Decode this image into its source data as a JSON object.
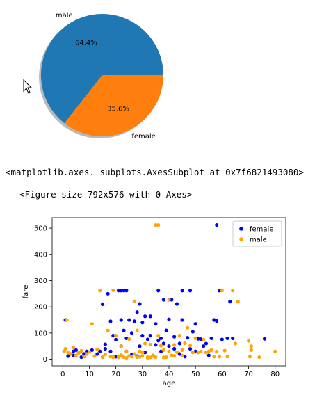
{
  "outputs": {
    "repr": "<matplotlib.axes._subplots.AxesSubplot at 0x7f6821493080>",
    "figure": "<Figure size 792x576 with 0 Axes>"
  },
  "chart_data": [
    {
      "type": "pie",
      "title": "",
      "slices": [
        {
          "label": "male",
          "value": 64.4,
          "pct_label": "64.4%",
          "color": "#1f77b4"
        },
        {
          "label": "female",
          "value": 35.6,
          "pct_label": "35.6%",
          "color": "#ff7f0e"
        }
      ],
      "shadow": true,
      "start_angle_deg": 0
    },
    {
      "type": "scatter",
      "title": "",
      "xlabel": "age",
      "ylabel": "fare",
      "xlim": [
        -4,
        84
      ],
      "ylim": [
        -25,
        540
      ],
      "xticks": [
        0,
        10,
        20,
        30,
        40,
        50,
        60,
        70,
        80
      ],
      "yticks": [
        0,
        100,
        200,
        300,
        400,
        500
      ],
      "legend": "top-right",
      "grid": false,
      "series": [
        {
          "name": "female",
          "color": "#0000ff",
          "points": [
            [
              1,
              150
            ],
            [
              2,
              12
            ],
            [
              3,
              20
            ],
            [
              4,
              30
            ],
            [
              4,
              15
            ],
            [
              5,
              35
            ],
            [
              6,
              25
            ],
            [
              8,
              20
            ],
            [
              9,
              30
            ],
            [
              11,
              35
            ],
            [
              14,
              30
            ],
            [
              15,
              210
            ],
            [
              15,
              8
            ],
            [
              16,
              57
            ],
            [
              16,
              40
            ],
            [
              17,
              250
            ],
            [
              18,
              145
            ],
            [
              18,
              30
            ],
            [
              19,
              90
            ],
            [
              19,
              8
            ],
            [
              20,
              75
            ],
            [
              21,
              262
            ],
            [
              22,
              262
            ],
            [
              22,
              150
            ],
            [
              22,
              50
            ],
            [
              23,
              262
            ],
            [
              23,
              110
            ],
            [
              24,
              262
            ],
            [
              24,
              80
            ],
            [
              24,
              30
            ],
            [
              25,
              150
            ],
            [
              26,
              100
            ],
            [
              27,
              145
            ],
            [
              28,
              180
            ],
            [
              28,
              12
            ],
            [
              29,
              211
            ],
            [
              29,
              50
            ],
            [
              30,
              140
            ],
            [
              30,
              90
            ],
            [
              31,
              164
            ],
            [
              32,
              76
            ],
            [
              33,
              164
            ],
            [
              33,
              90
            ],
            [
              35,
              135
            ],
            [
              35,
              55
            ],
            [
              36,
              262
            ],
            [
              36,
              71
            ],
            [
              37,
              80
            ],
            [
              38,
              227
            ],
            [
              38,
              60
            ],
            [
              39,
              110
            ],
            [
              40,
              152
            ],
            [
              40,
              50
            ],
            [
              41,
              227
            ],
            [
              42,
              86
            ],
            [
              42,
              40
            ],
            [
              43,
              211
            ],
            [
              44,
              60
            ],
            [
              45,
              262
            ],
            [
              45,
              150
            ],
            [
              47,
              82
            ],
            [
              48,
              262
            ],
            [
              48,
              40
            ],
            [
              49,
              105
            ],
            [
              50,
              135
            ],
            [
              50,
              30
            ],
            [
              51,
              78
            ],
            [
              52,
              77
            ],
            [
              53,
              50
            ],
            [
              54,
              60
            ],
            [
              55,
              15
            ],
            [
              56,
              80
            ],
            [
              57,
              150
            ],
            [
              58,
              512
            ],
            [
              58,
              146
            ],
            [
              59,
              262
            ],
            [
              60,
              76
            ],
            [
              62,
              80
            ],
            [
              63,
              220
            ],
            [
              64,
              80
            ],
            [
              76,
              78
            ],
            [
              7,
              8
            ],
            [
              13,
              20
            ],
            [
              20,
              10
            ],
            [
              26,
              18
            ],
            [
              31,
              26
            ],
            [
              34,
              13
            ],
            [
              37,
              30
            ],
            [
              44,
              20
            ],
            [
              46,
              10
            ]
          ]
        },
        {
          "name": "male",
          "color": "#ffa500",
          "points": [
            [
              0.5,
              30
            ],
            [
              1,
              40
            ],
            [
              1.5,
              150
            ],
            [
              2,
              25
            ],
            [
              3,
              20
            ],
            [
              4,
              45
            ],
            [
              5,
              15
            ],
            [
              6,
              25
            ],
            [
              7,
              32
            ],
            [
              8,
              10
            ],
            [
              9,
              20
            ],
            [
              10,
              28
            ],
            [
              11,
              135
            ],
            [
              12,
              12
            ],
            [
              13,
              38
            ],
            [
              14,
              262
            ],
            [
              15,
              8
            ],
            [
              16,
              18
            ],
            [
              17,
              110
            ],
            [
              18,
              10
            ],
            [
              19,
              263
            ],
            [
              20,
              90
            ],
            [
              21,
              12
            ],
            [
              22,
              50
            ],
            [
              23,
              8
            ],
            [
              24,
              30
            ],
            [
              25,
              77
            ],
            [
              26,
              10
            ],
            [
              27,
              20
            ],
            [
              28,
              110
            ],
            [
              29,
              30
            ],
            [
              30,
              26
            ],
            [
              31,
              60
            ],
            [
              32,
              8
            ],
            [
              33,
              56
            ],
            [
              34,
              15
            ],
            [
              35,
              512
            ],
            [
              36,
              512
            ],
            [
              36,
              90
            ],
            [
              37,
              52
            ],
            [
              38,
              35
            ],
            [
              39,
              8
            ],
            [
              40,
              30
            ],
            [
              41,
              15
            ],
            [
              42,
              55
            ],
            [
              43,
              27
            ],
            [
              44,
              90
            ],
            [
              45,
              35
            ],
            [
              46,
              61
            ],
            [
              47,
              120
            ],
            [
              48,
              52
            ],
            [
              49,
              26
            ],
            [
              50,
              80
            ],
            [
              51,
              26
            ],
            [
              52,
              30
            ],
            [
              53,
              75
            ],
            [
              54,
              26
            ],
            [
              55,
              30
            ],
            [
              56,
              35
            ],
            [
              57,
              10
            ],
            [
              58,
              29
            ],
            [
              59,
              10
            ],
            [
              60,
              262
            ],
            [
              61,
              33
            ],
            [
              62,
              10
            ],
            [
              64,
              262
            ],
            [
              65,
              60
            ],
            [
              66,
              220
            ],
            [
              70,
              70
            ],
            [
              70.5,
              10
            ],
            [
              71,
              50
            ],
            [
              71,
              35
            ],
            [
              74,
              8
            ],
            [
              80,
              30
            ],
            [
              27,
              221
            ],
            [
              40,
              227
            ],
            [
              22,
              16
            ],
            [
              25,
              13
            ],
            [
              32,
              5
            ],
            [
              45,
              14
            ],
            [
              28,
              8
            ],
            [
              33,
              7
            ],
            [
              24,
              5
            ],
            [
              30,
              13
            ],
            [
              19,
              8
            ],
            [
              21,
              7
            ],
            [
              35,
              8
            ],
            [
              42,
              13
            ],
            [
              38,
              7
            ],
            [
              29,
              9
            ]
          ]
        }
      ]
    }
  ]
}
